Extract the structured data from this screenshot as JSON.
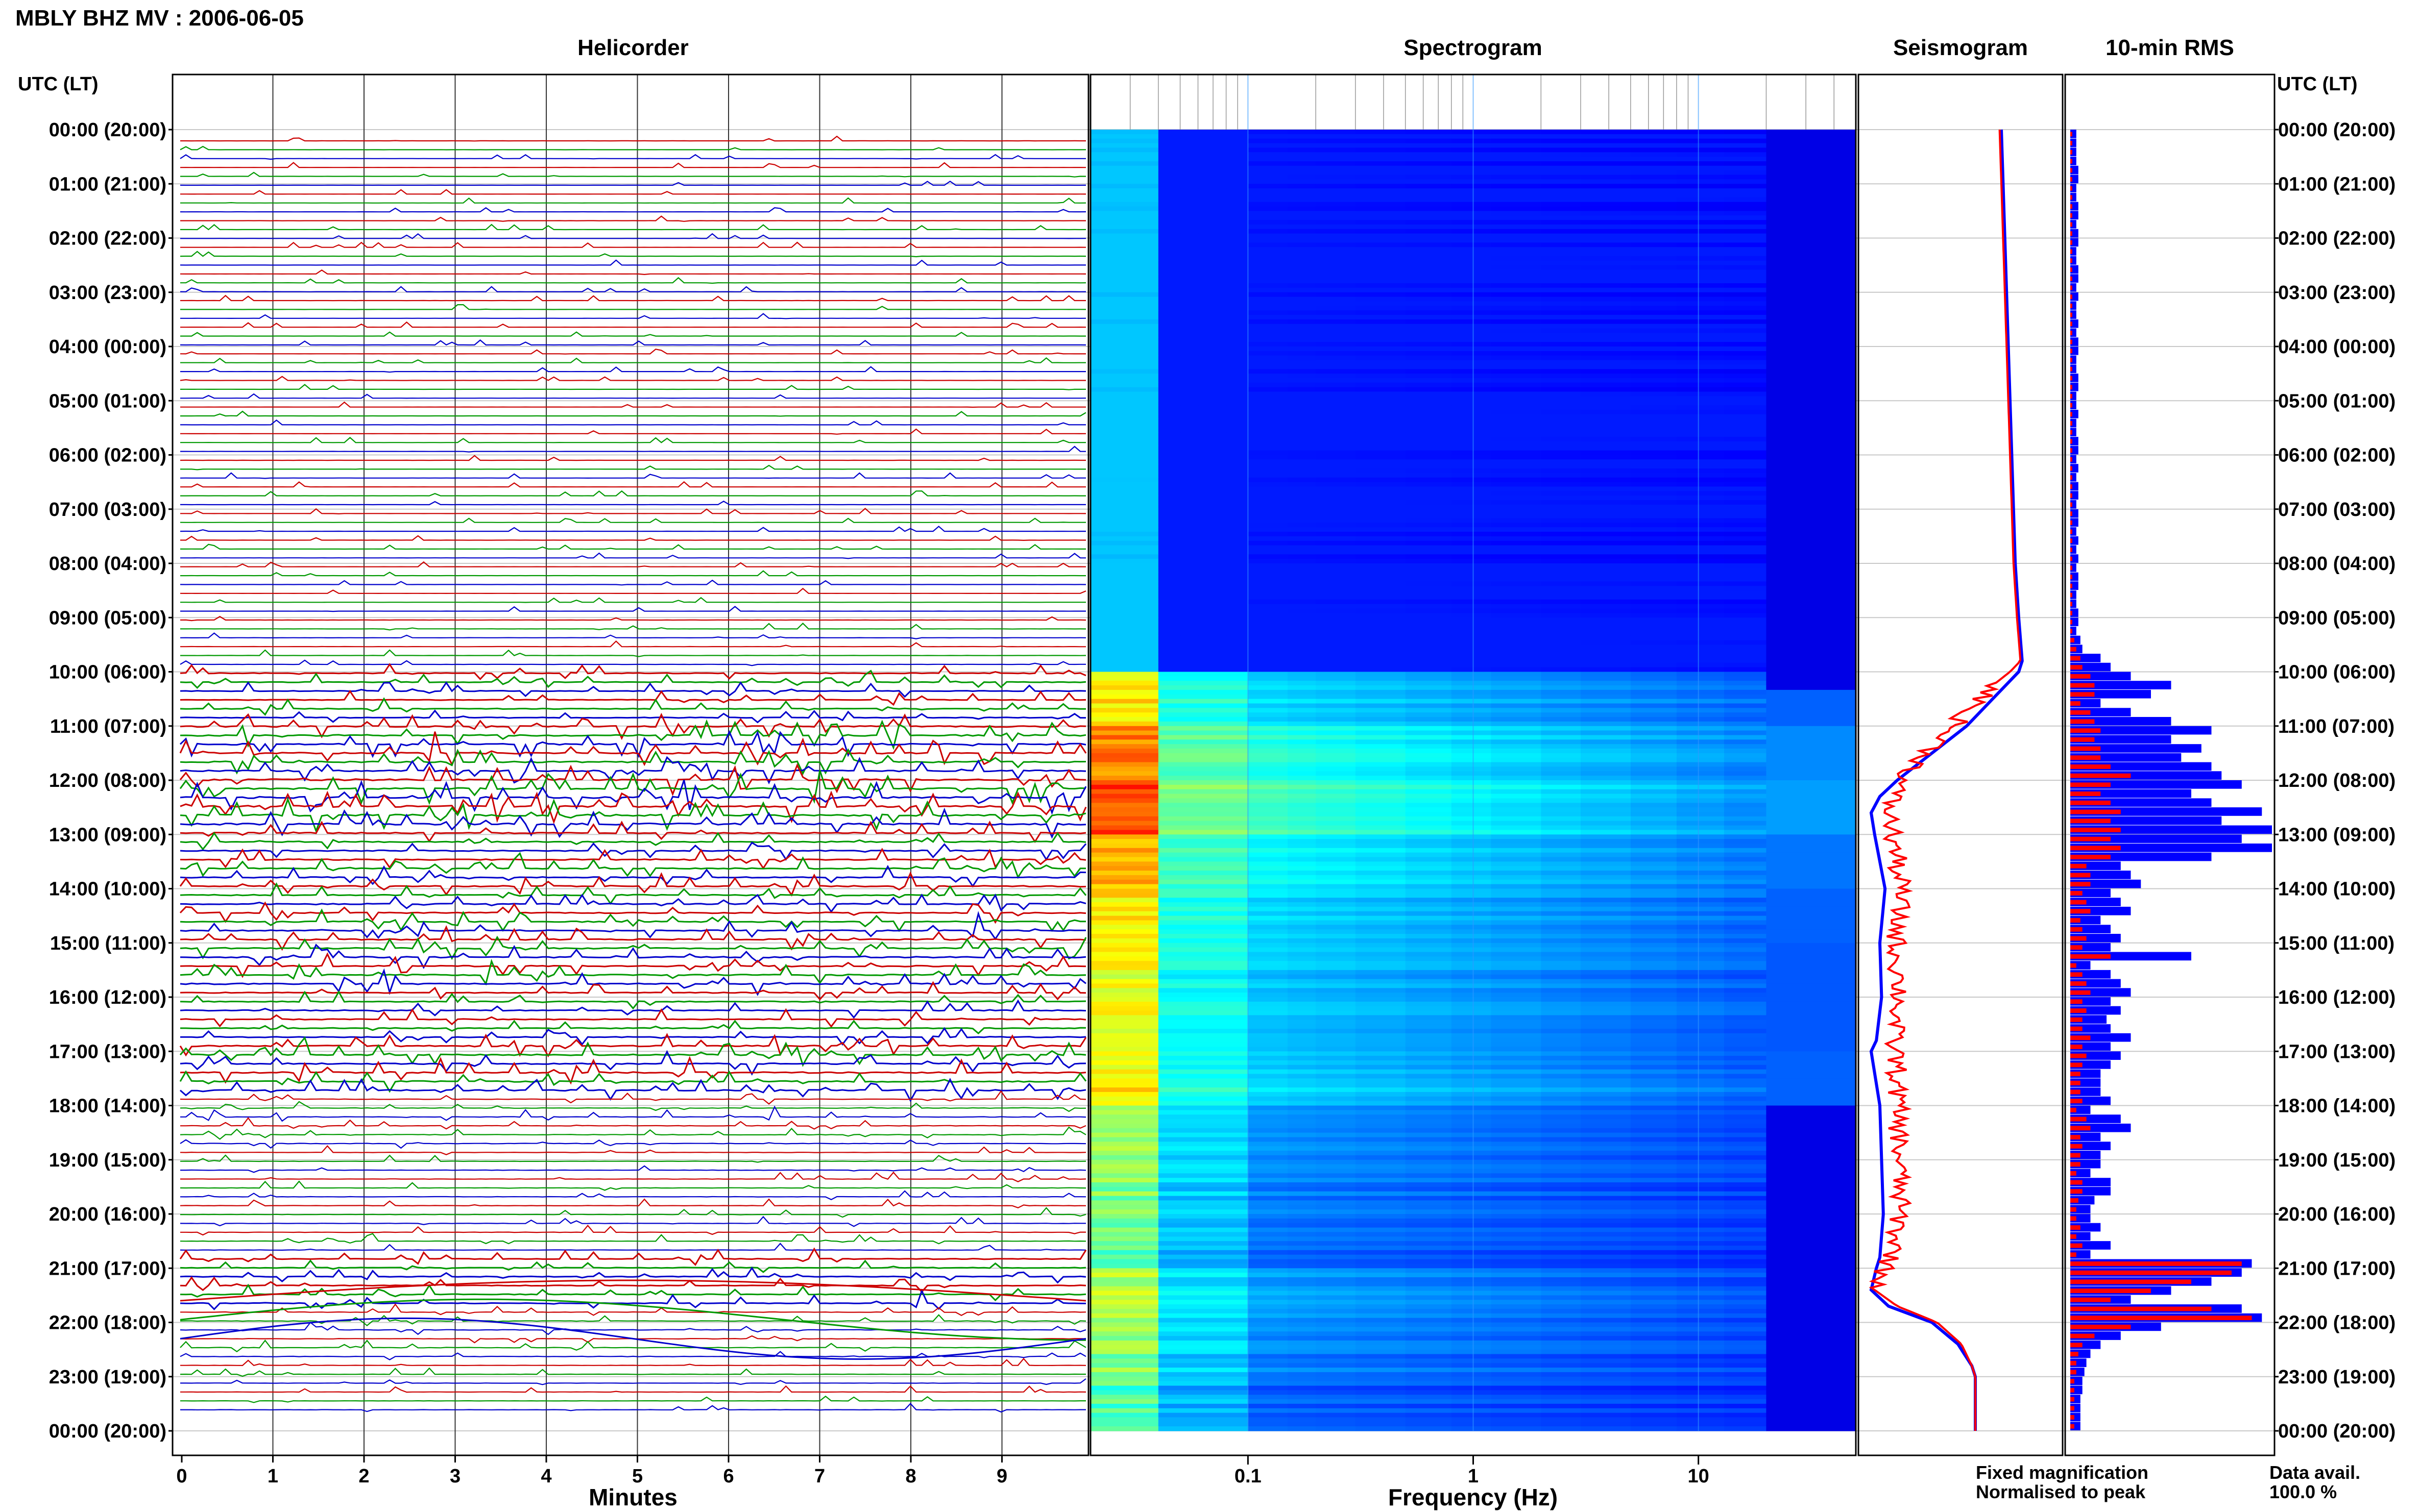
{
  "title": "MBLY BHZ MV : 2006-06-05",
  "panels": {
    "helicorder": "Helicorder",
    "spectrogram": "Spectrogram",
    "seismogram": "Seismogram",
    "rms": "10-min RMS"
  },
  "axis_header": "UTC (LT)",
  "time_labels": [
    "00:00 (20:00)",
    "01:00 (21:00)",
    "02:00 (22:00)",
    "03:00 (23:00)",
    "04:00 (00:00)",
    "05:00 (01:00)",
    "06:00 (02:00)",
    "07:00 (03:00)",
    "08:00 (04:00)",
    "09:00 (05:00)",
    "10:00 (06:00)",
    "11:00 (07:00)",
    "12:00 (08:00)",
    "13:00 (09:00)",
    "14:00 (10:00)",
    "15:00 (11:00)",
    "16:00 (12:00)",
    "17:00 (13:00)",
    "18:00 (14:00)",
    "19:00 (15:00)",
    "20:00 (16:00)",
    "21:00 (17:00)",
    "22:00 (18:00)",
    "23:00 (19:00)",
    "00:00 (20:00)"
  ],
  "minutes_ticks": [
    "0",
    "1",
    "2",
    "3",
    "4",
    "5",
    "6",
    "7",
    "8",
    "9"
  ],
  "minutes_label": "Minutes",
  "freq_ticks": [
    "0.1",
    "1",
    "10"
  ],
  "freq_label": "Frequency (Hz)",
  "legend": {
    "fixed": "Fixed magnification",
    "normalised": "Normalised to peak",
    "fixed_color": "#0000ff",
    "normalised_color": "#ff0000"
  },
  "data_avail": {
    "label": "Data avail.",
    "value": "100.0 %"
  },
  "colors": {
    "helicorder_traces": [
      "#cc0000",
      "#009900",
      "#0000cc",
      "#000000"
    ],
    "spectrogram_low": "#00008b",
    "spectrogram_high": "#ffff00"
  },
  "chart_data": [
    {
      "type": "line",
      "name": "helicorder",
      "title": "Helicorder",
      "xlabel": "Minutes",
      "xlim": [
        0,
        10
      ],
      "row_interval_minutes": 10,
      "activity_by_hour": [
        0.05,
        0.05,
        0.05,
        0.05,
        0.05,
        0.05,
        0.05,
        0.05,
        0.05,
        0.1,
        0.4,
        0.8,
        1.0,
        0.6,
        0.6,
        0.7,
        0.5,
        0.7,
        0.3,
        0.2,
        0.2,
        0.4,
        0.3,
        0.15
      ]
    },
    {
      "type": "heatmap",
      "name": "spectrogram",
      "title": "Spectrogram",
      "xlabel": "Frequency (Hz)",
      "xscale": "log",
      "xlim": [
        0.02,
        50
      ],
      "xticks": [
        0.1,
        1,
        10
      ],
      "intensity_by_hour": [
        0.1,
        0.1,
        0.1,
        0.1,
        0.1,
        0.1,
        0.1,
        0.1,
        0.1,
        0.15,
        0.6,
        0.8,
        0.9,
        0.7,
        0.6,
        0.55,
        0.55,
        0.6,
        0.4,
        0.35,
        0.3,
        0.45,
        0.35,
        0.25
      ]
    },
    {
      "type": "line",
      "name": "seismogram_envelope",
      "title": "Seismogram",
      "hours": [
        0,
        1,
        2,
        3,
        4,
        5,
        6,
        7,
        8,
        9,
        9.8,
        10,
        10.5,
        11,
        11.5,
        12,
        12.3,
        12.6,
        13,
        14,
        15,
        16,
        16.8,
        17,
        18,
        19,
        20,
        20.8,
        21,
        21.4,
        21.7,
        22,
        22.4,
        22.8,
        23,
        24
      ],
      "fixed": [
        0.75,
        0.76,
        0.77,
        0.78,
        0.79,
        0.8,
        0.81,
        0.82,
        0.83,
        0.85,
        0.87,
        0.85,
        0.7,
        0.55,
        0.35,
        0.15,
        0.05,
        0.0,
        0.02,
        0.08,
        0.05,
        0.06,
        0.03,
        0.0,
        0.05,
        0.06,
        0.07,
        0.05,
        0.03,
        0.0,
        0.1,
        0.35,
        0.5,
        0.58,
        0.6,
        0.6
      ],
      "normalised": [
        0.74,
        0.75,
        0.76,
        0.77,
        0.78,
        0.79,
        0.8,
        0.81,
        0.82,
        0.84,
        0.86,
        0.8,
        0.6,
        0.45,
        0.3,
        0.15,
        0.1,
        0.08,
        0.1,
        0.15,
        0.12,
        0.14,
        0.1,
        0.12,
        0.13,
        0.14,
        0.14,
        0.1,
        0.05,
        0.02,
        0.15,
        0.38,
        0.52,
        0.58,
        0.6,
        0.6
      ],
      "series": [
        {
          "name": "Fixed magnification"
        },
        {
          "name": "Normalised to peak"
        }
      ]
    },
    {
      "type": "bar",
      "name": "rms_10min",
      "title": "10-min RMS",
      "bin_minutes": 10,
      "series": [
        {
          "name": "Fixed magnification",
          "values": [
            0.03,
            0.03,
            0.03,
            0.03,
            0.04,
            0.04,
            0.03,
            0.03,
            0.04,
            0.04,
            0.03,
            0.04,
            0.04,
            0.03,
            0.03,
            0.04,
            0.04,
            0.03,
            0.04,
            0.03,
            0.03,
            0.04,
            0.03,
            0.04,
            0.04,
            0.03,
            0.03,
            0.04,
            0.04,
            0.03,
            0.03,
            0.04,
            0.03,
            0.03,
            0.04,
            0.04,
            0.03,
            0.04,
            0.03,
            0.04,
            0.04,
            0.03,
            0.04,
            0.04,
            0.03,
            0.04,
            0.03,
            0.04,
            0.03,
            0.04,
            0.04,
            0.03,
            0.03,
            0.04,
            0.04,
            0.03,
            0.05,
            0.06,
            0.15,
            0.2,
            0.3,
            0.5,
            0.4,
            0.15,
            0.3,
            0.5,
            0.7,
            0.5,
            0.65,
            0.55,
            0.7,
            0.75,
            0.85,
            0.6,
            0.7,
            0.95,
            0.75,
            1.0,
            0.85,
            1.0,
            0.7,
            0.25,
            0.3,
            0.35,
            0.2,
            0.25,
            0.3,
            0.15,
            0.2,
            0.25,
            0.2,
            0.6,
            0.1,
            0.2,
            0.25,
            0.3,
            0.2,
            0.25,
            0.18,
            0.2,
            0.3,
            0.2,
            0.25,
            0.2,
            0.15,
            0.15,
            0.15,
            0.2,
            0.1,
            0.25,
            0.3,
            0.15,
            0.2,
            0.15,
            0.15,
            0.1,
            0.2,
            0.2,
            0.12,
            0.1,
            0.1,
            0.15,
            0.1,
            0.2,
            0.1,
            0.9,
            0.85,
            0.7,
            0.5,
            0.3,
            0.85,
            0.95,
            0.45,
            0.25,
            0.15,
            0.1,
            0.08,
            0.07,
            0.06,
            0.06,
            0.05,
            0.05,
            0.05,
            0.05
          ]
        },
        {
          "name": "Normalised to peak",
          "values": [
            0.01,
            0.01,
            0.01,
            0.01,
            0.01,
            0.01,
            0.01,
            0.01,
            0.01,
            0.01,
            0.01,
            0.01,
            0.01,
            0.01,
            0.01,
            0.01,
            0.01,
            0.01,
            0.01,
            0.01,
            0.01,
            0.01,
            0.01,
            0.01,
            0.01,
            0.01,
            0.01,
            0.01,
            0.01,
            0.01,
            0.01,
            0.01,
            0.01,
            0.01,
            0.01,
            0.01,
            0.01,
            0.01,
            0.01,
            0.01,
            0.01,
            0.01,
            0.01,
            0.01,
            0.01,
            0.01,
            0.01,
            0.01,
            0.01,
            0.01,
            0.01,
            0.01,
            0.01,
            0.01,
            0.01,
            0.01,
            0.02,
            0.03,
            0.05,
            0.06,
            0.1,
            0.12,
            0.12,
            0.05,
            0.1,
            0.12,
            0.15,
            0.12,
            0.15,
            0.15,
            0.2,
            0.3,
            0.2,
            0.15,
            0.2,
            0.25,
            0.2,
            0.25,
            0.2,
            0.25,
            0.2,
            0.08,
            0.1,
            0.1,
            0.06,
            0.08,
            0.1,
            0.05,
            0.06,
            0.08,
            0.06,
            0.2,
            0.03,
            0.06,
            0.08,
            0.1,
            0.06,
            0.08,
            0.06,
            0.06,
            0.1,
            0.06,
            0.08,
            0.06,
            0.05,
            0.05,
            0.05,
            0.06,
            0.03,
            0.08,
            0.1,
            0.05,
            0.06,
            0.05,
            0.05,
            0.03,
            0.06,
            0.06,
            0.04,
            0.03,
            0.03,
            0.05,
            0.03,
            0.06,
            0.03,
            0.85,
            0.8,
            0.6,
            0.4,
            0.2,
            0.7,
            0.9,
            0.3,
            0.12,
            0.06,
            0.04,
            0.03,
            0.03,
            0.02,
            0.02,
            0.02,
            0.02,
            0.02,
            0.02
          ]
        }
      ]
    }
  ]
}
